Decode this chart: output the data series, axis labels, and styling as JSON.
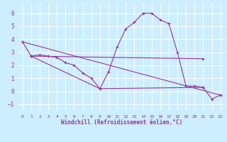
{
  "xlabel": "Windchill (Refroidissement éolien,°C)",
  "background_color": "#cceeff",
  "grid_color": "#ffffff",
  "line_color": "#993399",
  "xlim": [
    -0.5,
    23.5
  ],
  "ylim": [
    -1.5,
    6.8
  ],
  "xticks": [
    0,
    1,
    2,
    3,
    4,
    5,
    6,
    7,
    8,
    9,
    10,
    11,
    12,
    13,
    14,
    15,
    16,
    17,
    18,
    19,
    20,
    21,
    22,
    23
  ],
  "yticks": [
    -1,
    0,
    1,
    2,
    3,
    4,
    5,
    6
  ],
  "series1_x": [
    0,
    1,
    2,
    3,
    4,
    5,
    6,
    7,
    8,
    9,
    10,
    11,
    12,
    13,
    14,
    15,
    16,
    17,
    18,
    19,
    20,
    21,
    22,
    23
  ],
  "series1_y": [
    3.8,
    2.7,
    2.8,
    2.7,
    2.6,
    2.2,
    2.0,
    1.4,
    1.0,
    0.2,
    1.5,
    3.4,
    4.8,
    5.3,
    6.0,
    6.0,
    5.5,
    5.2,
    3.0,
    0.4,
    0.4,
    0.3,
    -0.6,
    -0.3
  ],
  "series2_x": [
    0,
    23
  ],
  "series2_y": [
    3.8,
    -0.3
  ],
  "series3_x": [
    1,
    9,
    21
  ],
  "series3_y": [
    2.7,
    0.2,
    0.3
  ],
  "series4_x": [
    1,
    21
  ],
  "series4_y": [
    2.7,
    2.5
  ]
}
